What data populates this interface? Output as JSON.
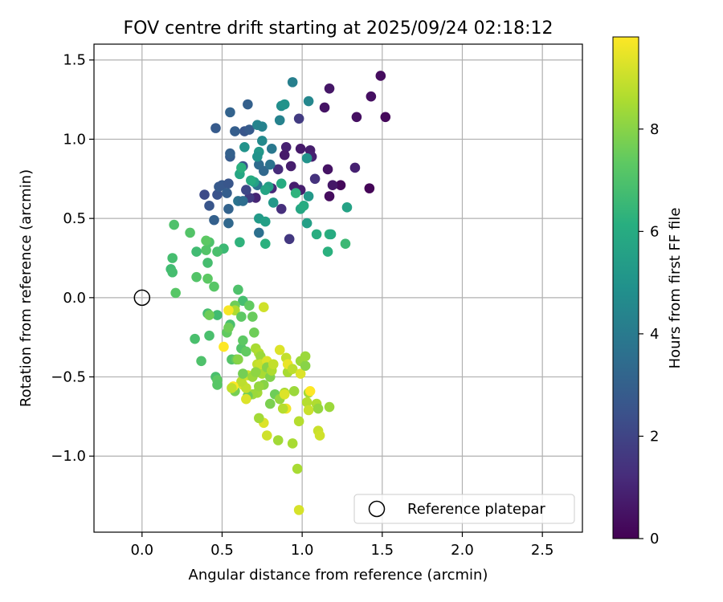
{
  "chart_data": {
    "type": "scatter",
    "title": "FOV centre drift starting at 2025/09/24 02:18:12",
    "xlabel": "Angular distance from reference (arcmin)",
    "ylabel": "Rotation from reference (arcmin)",
    "xlim": [
      -0.3,
      2.75
    ],
    "ylim": [
      -1.48,
      1.6
    ],
    "xticks": [
      0.0,
      0.5,
      1.0,
      1.5,
      2.0,
      2.5
    ],
    "xtick_labels": [
      "0.0",
      "0.5",
      "1.0",
      "1.5",
      "2.0",
      "2.5"
    ],
    "yticks": [
      -1.0,
      -0.5,
      0.0,
      0.5,
      1.0,
      1.5
    ],
    "ytick_labels": [
      "−1.0",
      "−0.5",
      "0.0",
      "0.5",
      "1.0",
      "1.5"
    ],
    "grid": true,
    "colorbar": {
      "label": "Hours from first FF file",
      "min": 0,
      "max": 9.8,
      "ticks": [
        0,
        2,
        4,
        6,
        8
      ],
      "tick_labels": [
        "0",
        "2",
        "4",
        "6",
        "8"
      ],
      "colormap": "viridis"
    },
    "legend": {
      "label": "Reference platepar",
      "position": "bottom-right"
    },
    "reference_point": {
      "x": 0.0,
      "y": 0.0
    },
    "points": [
      [
        1.49,
        1.4,
        0.3
      ],
      [
        1.17,
        1.32,
        0.6
      ],
      [
        1.43,
        1.27,
        0.4
      ],
      [
        1.14,
        1.2,
        0.5
      ],
      [
        1.34,
        1.14,
        0.4
      ],
      [
        1.52,
        1.14,
        0.2
      ],
      [
        1.42,
        0.69,
        0.1
      ],
      [
        1.17,
        0.64,
        0.3
      ],
      [
        1.24,
        0.71,
        0.2
      ],
      [
        1.19,
        0.71,
        0.6
      ],
      [
        1.33,
        0.82,
        0.9
      ],
      [
        1.16,
        0.81,
        0.5
      ],
      [
        1.08,
        0.75,
        1.4
      ],
      [
        1.05,
        0.93,
        0.8
      ],
      [
        1.06,
        0.89,
        0.9
      ],
      [
        0.99,
        0.94,
        0.7
      ],
      [
        0.9,
        0.95,
        0.9
      ],
      [
        0.89,
        0.9,
        0.7
      ],
      [
        0.93,
        0.83,
        0.8
      ],
      [
        0.95,
        0.7,
        0.8
      ],
      [
        0.99,
        0.68,
        0.8
      ],
      [
        0.92,
        0.37,
        1.6
      ],
      [
        0.98,
        1.13,
        1.7
      ],
      [
        0.87,
        0.56,
        1.3
      ],
      [
        0.85,
        0.81,
        1.2
      ],
      [
        0.81,
        0.69,
        1.1
      ],
      [
        0.71,
        0.63,
        1.0
      ],
      [
        0.67,
        0.63,
        1.7
      ],
      [
        0.65,
        0.68,
        2.1
      ],
      [
        0.63,
        0.83,
        2.5
      ],
      [
        0.64,
        1.05,
        2.6
      ],
      [
        0.67,
        1.06,
        2.8
      ],
      [
        0.58,
        1.05,
        2.9
      ],
      [
        0.55,
        1.17,
        3.1
      ],
      [
        0.66,
        1.22,
        3.0
      ],
      [
        0.46,
        1.07,
        2.8
      ],
      [
        0.55,
        0.89,
        2.8
      ],
      [
        0.55,
        0.91,
        3.0
      ],
      [
        0.39,
        0.65,
        2.2
      ],
      [
        0.42,
        0.58,
        2.6
      ],
      [
        0.47,
        0.65,
        2.5
      ],
      [
        0.48,
        0.7,
        2.8
      ],
      [
        0.5,
        0.71,
        2.7
      ],
      [
        0.54,
        0.72,
        2.6
      ],
      [
        0.53,
        0.66,
        2.9
      ],
      [
        0.45,
        0.49,
        3.0
      ],
      [
        0.54,
        0.56,
        3.1
      ],
      [
        0.54,
        0.47,
        3.3
      ],
      [
        0.6,
        0.61,
        3.7
      ],
      [
        0.63,
        0.61,
        3.5
      ],
      [
        0.73,
        0.41,
        3.6
      ],
      [
        0.73,
        0.84,
        3.4
      ],
      [
        0.72,
        0.71,
        3.7
      ],
      [
        0.76,
        0.8,
        3.3
      ],
      [
        0.8,
        0.84,
        3.7
      ],
      [
        0.81,
        0.94,
        3.9
      ],
      [
        0.75,
        0.99,
        4.6
      ],
      [
        0.72,
        1.09,
        4.4
      ],
      [
        0.75,
        1.08,
        4.3
      ],
      [
        0.86,
        1.12,
        4.3
      ],
      [
        0.87,
        1.21,
        4.8
      ],
      [
        0.89,
        1.22,
        5.0
      ],
      [
        0.94,
        1.36,
        4.2
      ],
      [
        1.04,
        1.24,
        4.5
      ],
      [
        1.03,
        0.88,
        5.0
      ],
      [
        1.04,
        0.64,
        5.2
      ],
      [
        1.03,
        0.47,
        5.5
      ],
      [
        0.99,
        0.56,
        5.8
      ],
      [
        1.01,
        0.58,
        6.0
      ],
      [
        1.09,
        0.4,
        6.1
      ],
      [
        1.17,
        0.4,
        6.3
      ],
      [
        1.18,
        0.4,
        6.0
      ],
      [
        1.16,
        0.29,
        6.2
      ],
      [
        1.27,
        0.34,
        6.6
      ],
      [
        1.28,
        0.57,
        5.6
      ],
      [
        0.96,
        0.66,
        6.3
      ],
      [
        0.87,
        0.72,
        6.0
      ],
      [
        0.82,
        0.6,
        5.2
      ],
      [
        0.79,
        0.7,
        5.5
      ],
      [
        0.77,
        0.68,
        5.7
      ],
      [
        0.73,
        0.5,
        5.3
      ],
      [
        0.77,
        0.48,
        5.5
      ],
      [
        0.77,
        0.34,
        6.2
      ],
      [
        0.61,
        0.78,
        5.8
      ],
      [
        0.62,
        0.82,
        6.2
      ],
      [
        0.64,
        0.95,
        5.0
      ],
      [
        0.73,
        0.92,
        5.2
      ],
      [
        0.72,
        0.89,
        5.0
      ],
      [
        0.7,
        0.73,
        5.5
      ],
      [
        0.68,
        0.74,
        6.0
      ],
      [
        0.61,
        0.35,
        6.3
      ],
      [
        0.51,
        0.31,
        6.6
      ],
      [
        0.47,
        0.29,
        6.9
      ],
      [
        0.42,
        0.35,
        7.0
      ],
      [
        0.4,
        0.3,
        7.1
      ],
      [
        0.41,
        0.22,
        6.8
      ],
      [
        0.4,
        0.36,
        7.3
      ],
      [
        0.34,
        0.29,
        6.7
      ],
      [
        0.3,
        0.41,
        7.1
      ],
      [
        0.2,
        0.46,
        7.0
      ],
      [
        0.19,
        0.25,
        6.8
      ],
      [
        0.18,
        0.18,
        6.7
      ],
      [
        0.19,
        0.16,
        6.8
      ],
      [
        0.21,
        0.03,
        7.2
      ],
      [
        0.34,
        0.13,
        7.1
      ],
      [
        0.41,
        0.12,
        7.3
      ],
      [
        0.45,
        0.07,
        7.2
      ],
      [
        0.6,
        0.05,
        7.0
      ],
      [
        0.63,
        -0.02,
        6.8
      ],
      [
        0.67,
        -0.05,
        7.4
      ],
      [
        0.58,
        -0.05,
        7.6
      ],
      [
        0.58,
        -0.08,
        8.6
      ],
      [
        0.54,
        -0.08,
        9.7
      ],
      [
        0.76,
        -0.06,
        9.1
      ],
      [
        0.69,
        -0.12,
        7.5
      ],
      [
        0.62,
        -0.12,
        7.3
      ],
      [
        0.55,
        -0.17,
        6.9
      ],
      [
        0.53,
        -0.22,
        7.4
      ],
      [
        0.47,
        -0.11,
        6.7
      ],
      [
        0.41,
        -0.1,
        6.8
      ],
      [
        0.42,
        -0.11,
        7.6
      ],
      [
        0.42,
        -0.24,
        6.9
      ],
      [
        0.33,
        -0.26,
        6.9
      ],
      [
        0.37,
        -0.4,
        7.0
      ],
      [
        0.46,
        -0.5,
        6.9
      ],
      [
        0.47,
        -0.52,
        7.3
      ],
      [
        0.47,
        -0.55,
        7.2
      ],
      [
        0.51,
        -0.31,
        9.8
      ],
      [
        0.54,
        -0.19,
        7.6
      ],
      [
        0.56,
        -0.39,
        7.1
      ],
      [
        0.59,
        -0.39,
        7.5
      ],
      [
        0.6,
        -0.39,
        8.0
      ],
      [
        0.62,
        -0.32,
        7.1
      ],
      [
        0.63,
        -0.27,
        7.3
      ],
      [
        0.65,
        -0.34,
        7.4
      ],
      [
        0.7,
        -0.22,
        7.6
      ],
      [
        0.71,
        -0.32,
        8.5
      ],
      [
        0.72,
        -0.42,
        8.9
      ],
      [
        0.73,
        -0.35,
        8.6
      ],
      [
        0.74,
        -0.37,
        8.3
      ],
      [
        0.73,
        -0.46,
        8.8
      ],
      [
        0.75,
        -0.48,
        8.5
      ],
      [
        0.74,
        -0.42,
        9.0
      ],
      [
        0.76,
        -0.55,
        8.0
      ],
      [
        0.78,
        -0.4,
        9.3
      ],
      [
        0.78,
        -0.44,
        8.0
      ],
      [
        0.8,
        -0.5,
        7.9
      ],
      [
        0.81,
        -0.46,
        8.6
      ],
      [
        0.82,
        -0.42,
        8.9
      ],
      [
        0.83,
        -0.61,
        7.6
      ],
      [
        0.8,
        -0.67,
        7.8
      ],
      [
        0.86,
        -0.64,
        8.2
      ],
      [
        0.86,
        -0.33,
        9.3
      ],
      [
        0.9,
        -0.38,
        8.9
      ],
      [
        0.89,
        -0.6,
        8.5
      ],
      [
        0.89,
        -0.61,
        9.3
      ],
      [
        0.9,
        -0.7,
        9.6
      ],
      [
        0.88,
        -0.7,
        8.7
      ],
      [
        0.85,
        -0.9,
        8.4
      ],
      [
        0.91,
        -0.47,
        8.5
      ],
      [
        0.91,
        -0.42,
        9.5
      ],
      [
        0.94,
        -0.92,
        8.5
      ],
      [
        0.94,
        -0.45,
        8.8
      ],
      [
        0.95,
        -0.59,
        8.3
      ],
      [
        0.98,
        -0.78,
        8.7
      ],
      [
        0.99,
        -0.48,
        9.3
      ],
      [
        0.99,
        -0.4,
        8.3
      ],
      [
        1.02,
        -0.43,
        8.0
      ],
      [
        1.02,
        -0.37,
        8.3
      ],
      [
        1.04,
        -0.6,
        8.4
      ],
      [
        1.03,
        -0.66,
        8.7
      ],
      [
        1.04,
        -0.71,
        9.0
      ],
      [
        1.05,
        -0.59,
        9.8
      ],
      [
        1.09,
        -0.67,
        8.6
      ],
      [
        1.1,
        -0.7,
        8.2
      ],
      [
        1.1,
        -0.84,
        9.0
      ],
      [
        1.11,
        -0.87,
        9.1
      ],
      [
        1.17,
        -0.69,
        8.3
      ],
      [
        0.97,
        -1.08,
        8.5
      ],
      [
        0.98,
        -1.34,
        9.2
      ],
      [
        0.76,
        -0.79,
        9.3
      ],
      [
        0.78,
        -0.87,
        9.1
      ],
      [
        0.73,
        -0.76,
        8.4
      ],
      [
        0.72,
        -0.6,
        8.4
      ],
      [
        0.73,
        -0.56,
        8.2
      ],
      [
        0.69,
        -0.61,
        8.3
      ],
      [
        0.66,
        -0.62,
        7.6
      ],
      [
        0.65,
        -0.64,
        9.3
      ],
      [
        0.63,
        -0.55,
        9.3
      ],
      [
        0.65,
        -0.57,
        8.9
      ],
      [
        0.62,
        -0.53,
        8.8
      ],
      [
        0.58,
        -0.59,
        7.7
      ],
      [
        0.57,
        -0.56,
        9.8
      ],
      [
        0.56,
        -0.57,
        8.9
      ],
      [
        0.66,
        -0.49,
        9.1
      ],
      [
        0.63,
        -0.48,
        7.7
      ],
      [
        0.69,
        -0.5,
        8.3
      ],
      [
        0.71,
        -0.47,
        8.1
      ]
    ]
  }
}
